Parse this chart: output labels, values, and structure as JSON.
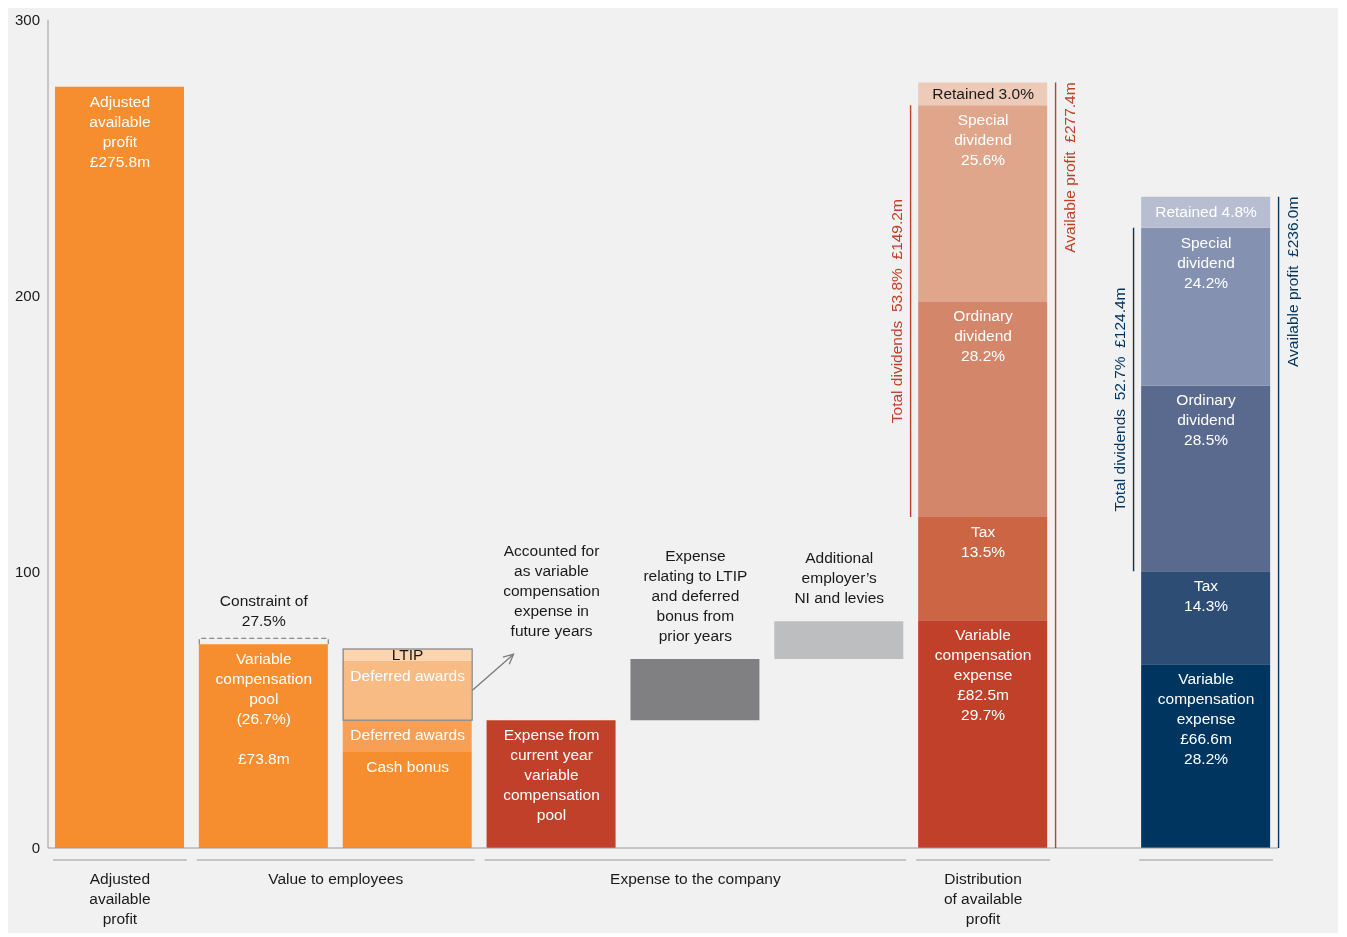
{
  "chart_data": {
    "type": "bar",
    "stacked": true,
    "categories": [
      null,
      null,
      null,
      null,
      null,
      null,
      null,
      null
    ],
    "ylim": [
      0,
      300
    ],
    "yticks": [
      0,
      100,
      200,
      300
    ],
    "series": [
      {
        "name": "Adjusted\navailable\nprofit\n£275.8m",
        "color": "#f68d2e",
        "values": [
          275.8,
          null,
          null,
          null,
          null,
          null,
          null,
          null
        ]
      },
      {
        "name": "Variable\ncompensation\npool\n(26.7%)\n\n£73.8m",
        "color": "#f68d2e",
        "values": [
          null,
          73.8,
          null,
          null,
          null,
          null,
          null,
          null
        ]
      },
      {
        "name": "Cash bonus",
        "color": "#f68d2e",
        "values": [
          null,
          null,
          34.8,
          null,
          null,
          null,
          null,
          null
        ]
      },
      {
        "name": "Deferred awards",
        "color": "#f7a055",
        "values": [
          null,
          null,
          11.5,
          null,
          null,
          null,
          null,
          null
        ]
      },
      {
        "name": "Deferred awards",
        "color": "#f8bb84",
        "values": [
          null,
          null,
          21.5,
          null,
          null,
          null,
          null,
          null
        ]
      },
      {
        "name": "LTIP",
        "color": "#fcd5b0",
        "values": [
          null,
          null,
          4.3,
          null,
          null,
          null,
          null,
          null
        ]
      },
      {
        "name": "Expense from\ncurrent year\nvariable\ncompensation\npool",
        "color": "#c0402a",
        "values": [
          null,
          null,
          null,
          46.3,
          null,
          null,
          null,
          null
        ]
      },
      {
        "color": "#808083",
        "values": [
          null,
          null,
          null,
          null,
          22.2,
          null,
          null,
          null
        ],
        "base": [
          null,
          null,
          null,
          null,
          46.3,
          null,
          null,
          null
        ]
      },
      {
        "color": "#bdbec0",
        "values": [
          null,
          null,
          null,
          null,
          null,
          13.7,
          null,
          null
        ],
        "base": [
          null,
          null,
          null,
          null,
          null,
          68.5,
          null,
          null
        ]
      },
      {
        "name": "Variable\ncompensation\nexpense\n£82.5m\n29.7%",
        "color": "#c0402a",
        "values": [
          null,
          null,
          null,
          null,
          null,
          null,
          82.5,
          null
        ]
      },
      {
        "name": "Tax\n13.5%",
        "color": "#cc6544",
        "values": [
          null,
          null,
          null,
          null,
          null,
          null,
          37.4,
          null
        ]
      },
      {
        "name": "Ordinary\ndividend\n28.2%",
        "color": "#d4866a",
        "values": [
          null,
          null,
          null,
          null,
          null,
          null,
          78.2,
          null
        ]
      },
      {
        "name": "Special\ndividend\n25.6%",
        "color": "#dfa68c",
        "values": [
          null,
          null,
          null,
          null,
          null,
          null,
          71.0,
          null
        ]
      },
      {
        "name": "Retained  3.0%",
        "color": "#eecab8",
        "values": [
          null,
          null,
          null,
          null,
          null,
          null,
          8.3,
          null
        ]
      },
      {
        "name": "Variable\ncompensation\nexpense\n£66.6m\n28.2%",
        "color": "#00355f",
        "values": [
          null,
          null,
          null,
          null,
          null,
          null,
          null,
          66.6
        ]
      },
      {
        "name": "Tax\n14.3%",
        "color": "#2d4d74",
        "values": [
          null,
          null,
          null,
          null,
          null,
          null,
          null,
          33.7
        ]
      },
      {
        "name": "Ordinary\ndividend\n28.5%",
        "color": "#5a6a8f",
        "values": [
          null,
          null,
          null,
          null,
          null,
          null,
          null,
          67.3
        ]
      },
      {
        "name": "Special\ndividend\n24.2%",
        "color": "#8591b0",
        "values": [
          null,
          null,
          null,
          null,
          null,
          null,
          null,
          57.1
        ]
      },
      {
        "name": "Retained  4.8%",
        "color": "#b8bed2",
        "values": [
          null,
          null,
          null,
          null,
          null,
          null,
          null,
          11.3
        ]
      }
    ],
    "annotations": [
      "Constraint of\n27.5%",
      "Accounted for\nas variable\ncompensation\nexpense in\nfuture years",
      "Expense\nrelating to LTIP\nand deferred\nbonus from\nprior years",
      "Additional\nemployer’s\nNI and levies",
      "Total dividends  53.8%  £149.2m",
      "Available profit  £277.4m",
      "Total dividends  52.7%  £124.4m",
      "Available profit  £236.0m",
      "Adjusted\navailable\nprofit",
      "Value to employees",
      "Expense to the company",
      "Distribution\nof available\nprofit"
    ]
  }
}
